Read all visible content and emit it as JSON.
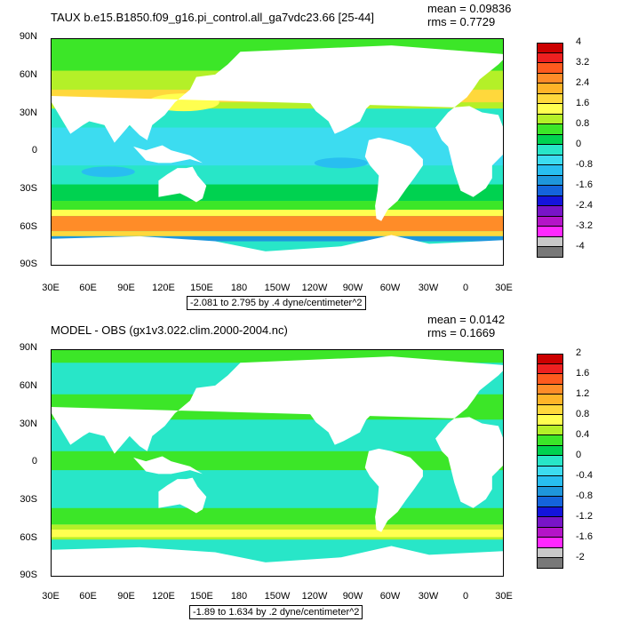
{
  "panels": [
    {
      "title": "TAUX b.e15.B1850.f09_g16.pi_control.all_ga7vdc23.66 [25-44]",
      "mean": "mean = 0.09836",
      "rms": "rms = 0.7729",
      "range_text": "-2.081 to 2.795 by .4 dyne/centimeter^2",
      "colorbar": {
        "labels": [
          "4",
          "3.2",
          "2.4",
          "1.6",
          "0.8",
          "0",
          "-0.8",
          "-1.6",
          "-2.4",
          "-3.2",
          "-4"
        ],
        "colors": [
          "#cc0000",
          "#ee2020",
          "#ff5a1e",
          "#ff8c28",
          "#ffb428",
          "#ffd83c",
          "#ffff50",
          "#b4f028",
          "#3ce628",
          "#00d250",
          "#28e6c8",
          "#3cdcf0",
          "#28bef0",
          "#1e96dc",
          "#1464dc",
          "#1414dc",
          "#7814c8",
          "#b414c8",
          "#ff28ff",
          "#c8c8c8",
          "#787878"
        ]
      },
      "map_style": "taux"
    },
    {
      "title": "MODEL - OBS (gx1v3.022.clim.2000-2004.nc)",
      "mean": "mean = 0.0142",
      "rms": "rms = 0.1669",
      "range_text": "-1.89 to 1.634 by .2 dyne/centimeter^2",
      "colorbar": {
        "labels": [
          "2",
          "1.6",
          "1.2",
          "0.8",
          "0.4",
          "0",
          "-0.4",
          "-0.8",
          "-1.2",
          "-1.6",
          "-2"
        ],
        "colors": [
          "#cc0000",
          "#ee2020",
          "#ff5a1e",
          "#ff8c28",
          "#ffb428",
          "#ffd83c",
          "#ffff50",
          "#b4f028",
          "#3ce628",
          "#00d250",
          "#28e6c8",
          "#3cdcf0",
          "#28bef0",
          "#1e96dc",
          "#1464dc",
          "#1414dc",
          "#7814c8",
          "#b414c8",
          "#ff28ff",
          "#c8c8c8",
          "#787878"
        ]
      },
      "map_style": "diff"
    }
  ],
  "lat_ticks": [
    "90N",
    "60N",
    "30N",
    "0",
    "30S",
    "60S",
    "90S"
  ],
  "lon_ticks": [
    "30E",
    "60E",
    "90E",
    "120E",
    "150E",
    "180",
    "150W",
    "120W",
    "90W",
    "60W",
    "30W",
    "0",
    "30E"
  ]
}
